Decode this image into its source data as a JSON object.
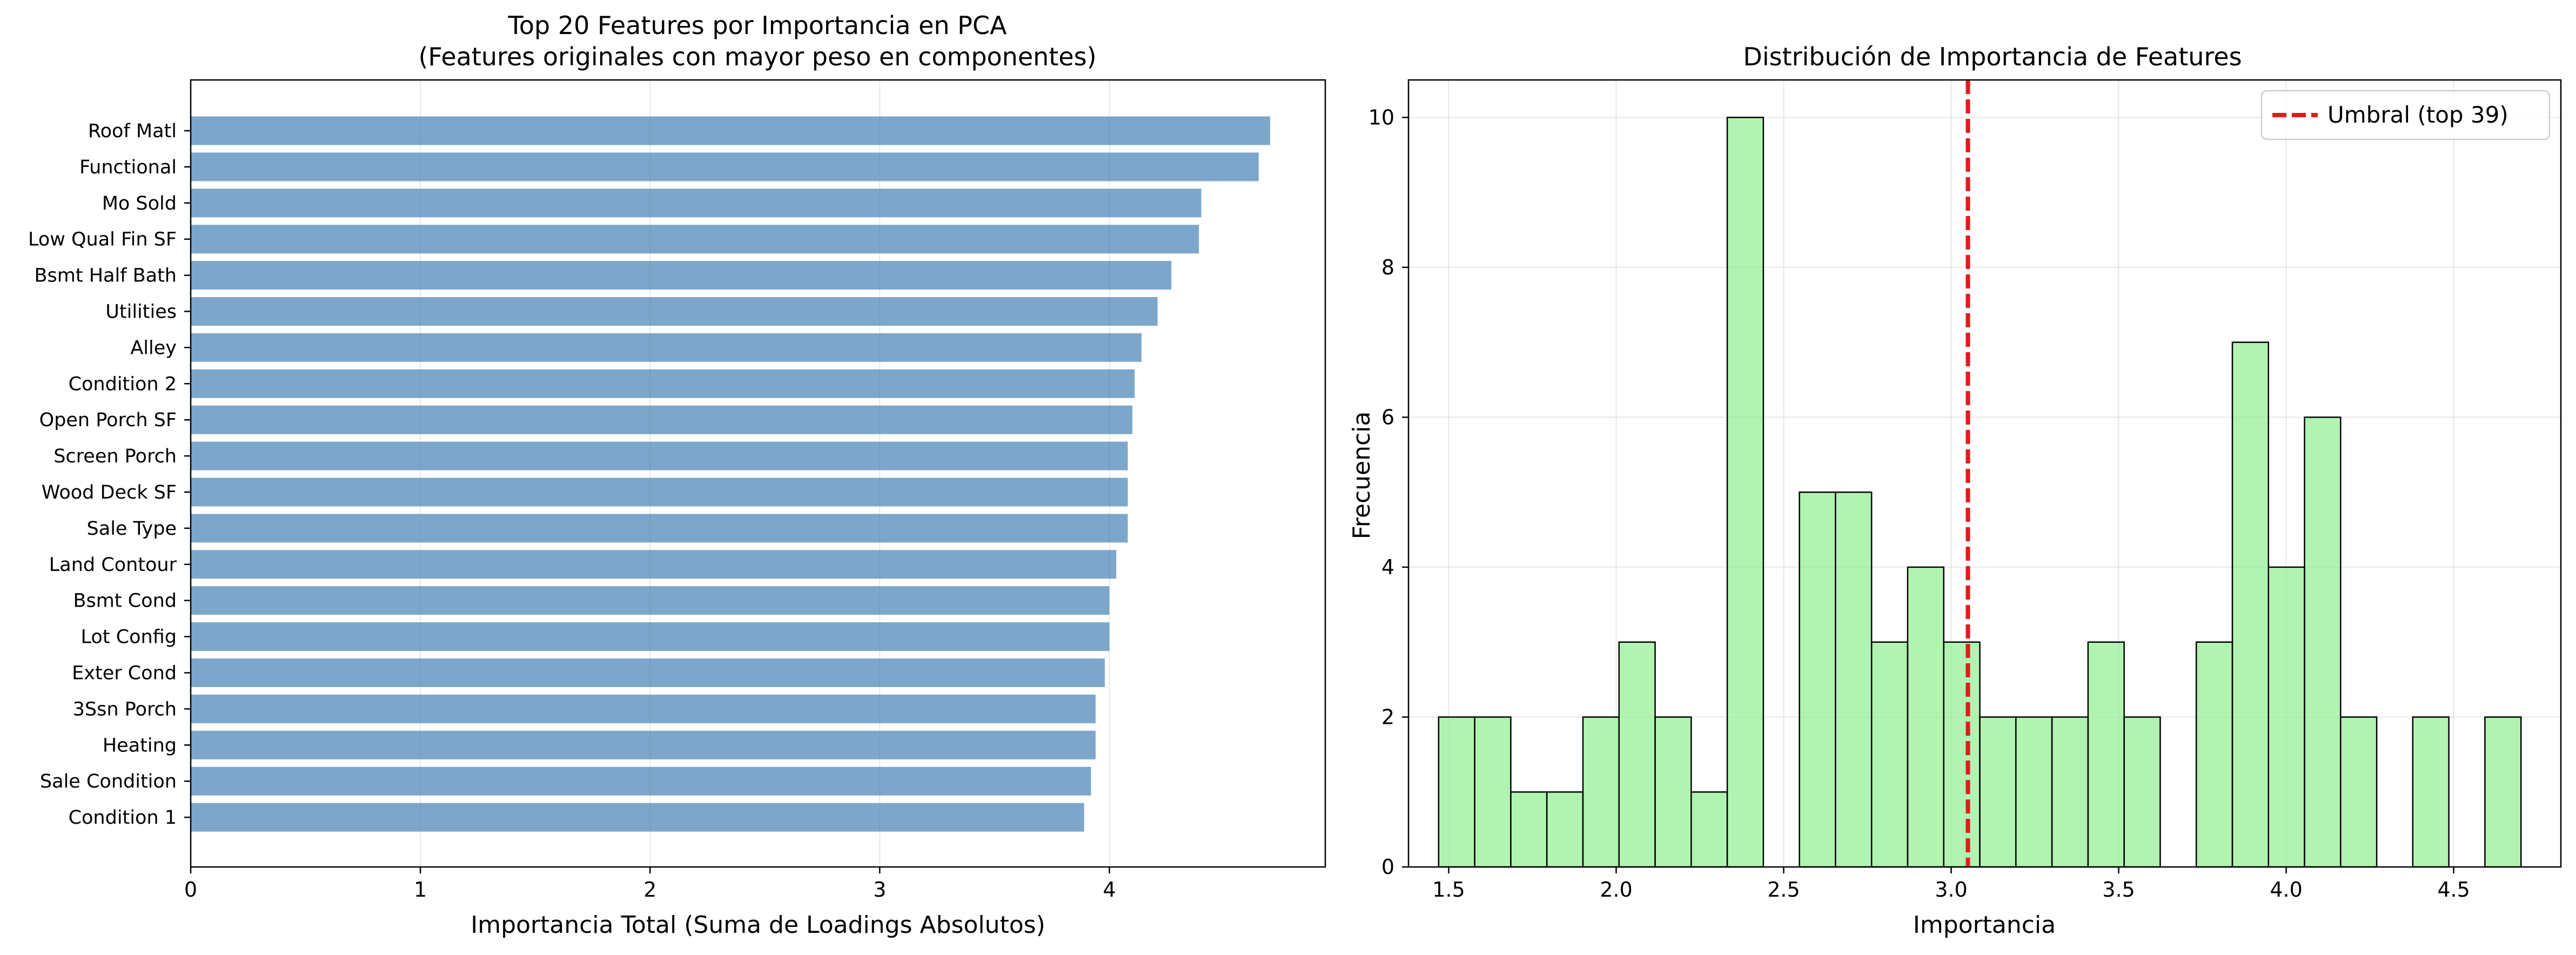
{
  "chart_data": [
    {
      "type": "bar",
      "orientation": "horizontal",
      "title": "Top 20 Features por Importancia en PCA",
      "subtitle": "(Features originales con mayor peso en componentes)",
      "xlabel": "Importancia Total (Suma de Loadings Absolutos)",
      "ylabel": "",
      "xlim": [
        0,
        4.94
      ],
      "xticks": [
        "0",
        "1",
        "2",
        "3",
        "4"
      ],
      "grid": true,
      "bar_color": "#4682b4",
      "categories": [
        "Roof Matl",
        "Functional",
        "Mo Sold",
        "Low Qual Fin SF",
        "Bsmt Half Bath",
        "Utilities",
        "Alley",
        "Condition 2",
        "Open Porch SF",
        "Screen Porch",
        "Wood Deck SF",
        "Sale Type",
        "Land Contour",
        "Bsmt Cond",
        "Lot Config",
        "Exter Cond",
        "3Ssn Porch",
        "Heating",
        "Sale Condition",
        "Condition 1"
      ],
      "values": [
        4.7,
        4.65,
        4.4,
        4.39,
        4.27,
        4.21,
        4.14,
        4.11,
        4.1,
        4.08,
        4.08,
        4.08,
        4.03,
        4.0,
        4.0,
        3.98,
        3.94,
        3.94,
        3.92,
        3.89
      ]
    },
    {
      "type": "histogram",
      "title": "Distribución de Importancia de Features",
      "xlabel": "Importancia",
      "ylabel": "Frecuencia",
      "xlim": [
        1.38,
        4.82
      ],
      "ylim": [
        0,
        10.5
      ],
      "xticks": [
        "1.5",
        "2.0",
        "2.5",
        "3.0",
        "3.5",
        "4.0",
        "4.5"
      ],
      "yticks": [
        "0",
        "2",
        "4",
        "6",
        "8",
        "10"
      ],
      "grid": true,
      "bar_color": "#90ee90",
      "edge_color": "#000000",
      "bin_start": 1.47,
      "bin_width": 0.1077,
      "counts": [
        2,
        2,
        1,
        1,
        2,
        3,
        2,
        1,
        10,
        0,
        5,
        5,
        3,
        4,
        3,
        2,
        2,
        2,
        3,
        2,
        0,
        3,
        7,
        4,
        6,
        2,
        0,
        2,
        0,
        2
      ],
      "threshold": 3.05,
      "threshold_color": "#e31a1c",
      "legend": {
        "position": "top-right",
        "label": "Umbral (top 39)"
      }
    }
  ]
}
